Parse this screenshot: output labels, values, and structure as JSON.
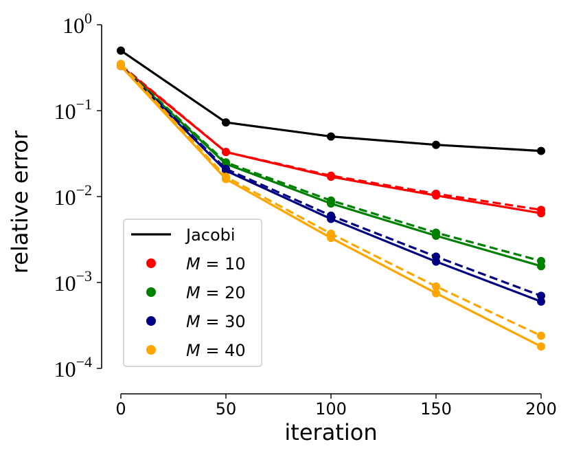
{
  "chart_data": {
    "type": "line",
    "xlabel": "iteration",
    "ylabel": "relative error",
    "yscale": "log",
    "xlim": [
      0,
      200
    ],
    "ylim": [
      0.0001,
      1
    ],
    "xticks": [
      0,
      50,
      100,
      150,
      200
    ],
    "yticks": [
      {
        "value": 1,
        "base": "10",
        "exp": "0"
      },
      {
        "value": 0.1,
        "base": "10",
        "exp": "−1"
      },
      {
        "value": 0.01,
        "base": "10",
        "exp": "−2"
      },
      {
        "value": 0.001,
        "base": "10",
        "exp": "−3"
      },
      {
        "value": 0.0001,
        "base": "10",
        "exp": "−4"
      }
    ],
    "legend_position": "lower-left",
    "legend": [
      {
        "label": "Jacobi",
        "kind": "line",
        "color": "#000000"
      },
      {
        "label": "M = 10",
        "kind": "marker",
        "color": "#ff0000",
        "var": "M",
        "value": "10"
      },
      {
        "label": "M = 20",
        "kind": "marker",
        "color": "#008000",
        "var": "M",
        "value": "20"
      },
      {
        "label": "M = 30",
        "kind": "marker",
        "color": "#000080",
        "var": "M",
        "value": "30"
      },
      {
        "label": "M = 40",
        "kind": "marker",
        "color": "#ffa500",
        "var": "M",
        "value": "40"
      }
    ],
    "series": [
      {
        "name": "Jacobi",
        "color": "#000000",
        "style": "solid",
        "markers": true,
        "x": [
          0,
          50,
          100,
          150,
          200
        ],
        "y": [
          0.5,
          0.073,
          0.05,
          0.04,
          0.034
        ]
      },
      {
        "name": "M = 10 (solid)",
        "color": "#ff0000",
        "style": "solid",
        "markers": true,
        "x": [
          0,
          50,
          100,
          150,
          200
        ],
        "y": [
          0.33,
          0.033,
          0.017,
          0.0103,
          0.0064
        ]
      },
      {
        "name": "M = 10 (dashed)",
        "color": "#ff0000",
        "style": "dashed",
        "markers": true,
        "x": [
          0,
          50,
          100,
          150,
          200
        ],
        "y": [
          0.34,
          0.033,
          0.0175,
          0.0108,
          0.007
        ]
      },
      {
        "name": "M = 20 (solid)",
        "color": "#008000",
        "style": "solid",
        "markers": true,
        "x": [
          0,
          50,
          100,
          150,
          200
        ],
        "y": [
          0.33,
          0.024,
          0.0083,
          0.0035,
          0.00155
        ]
      },
      {
        "name": "M = 20 (dashed)",
        "color": "#008000",
        "style": "dashed",
        "markers": true,
        "x": [
          0,
          50,
          100,
          150,
          200
        ],
        "y": [
          0.34,
          0.025,
          0.009,
          0.0038,
          0.00178
        ]
      },
      {
        "name": "M = 30 (solid)",
        "color": "#000080",
        "style": "solid",
        "markers": true,
        "x": [
          0,
          50,
          100,
          150,
          200
        ],
        "y": [
          0.33,
          0.02,
          0.0055,
          0.00175,
          0.0006
        ]
      },
      {
        "name": "M = 30 (dashed)",
        "color": "#000080",
        "style": "dashed",
        "markers": true,
        "x": [
          0,
          50,
          100,
          150,
          200
        ],
        "y": [
          0.34,
          0.021,
          0.006,
          0.002,
          0.0007
        ]
      },
      {
        "name": "M = 40 (solid)",
        "color": "#ffa500",
        "style": "solid",
        "markers": true,
        "x": [
          0,
          50,
          100,
          150,
          200
        ],
        "y": [
          0.33,
          0.016,
          0.0033,
          0.00075,
          0.00018
        ]
      },
      {
        "name": "M = 40 (dashed)",
        "color": "#ffa500",
        "style": "dashed",
        "markers": true,
        "x": [
          0,
          50,
          100,
          150,
          200
        ],
        "y": [
          0.35,
          0.017,
          0.0037,
          0.0009,
          0.00024
        ]
      }
    ]
  }
}
